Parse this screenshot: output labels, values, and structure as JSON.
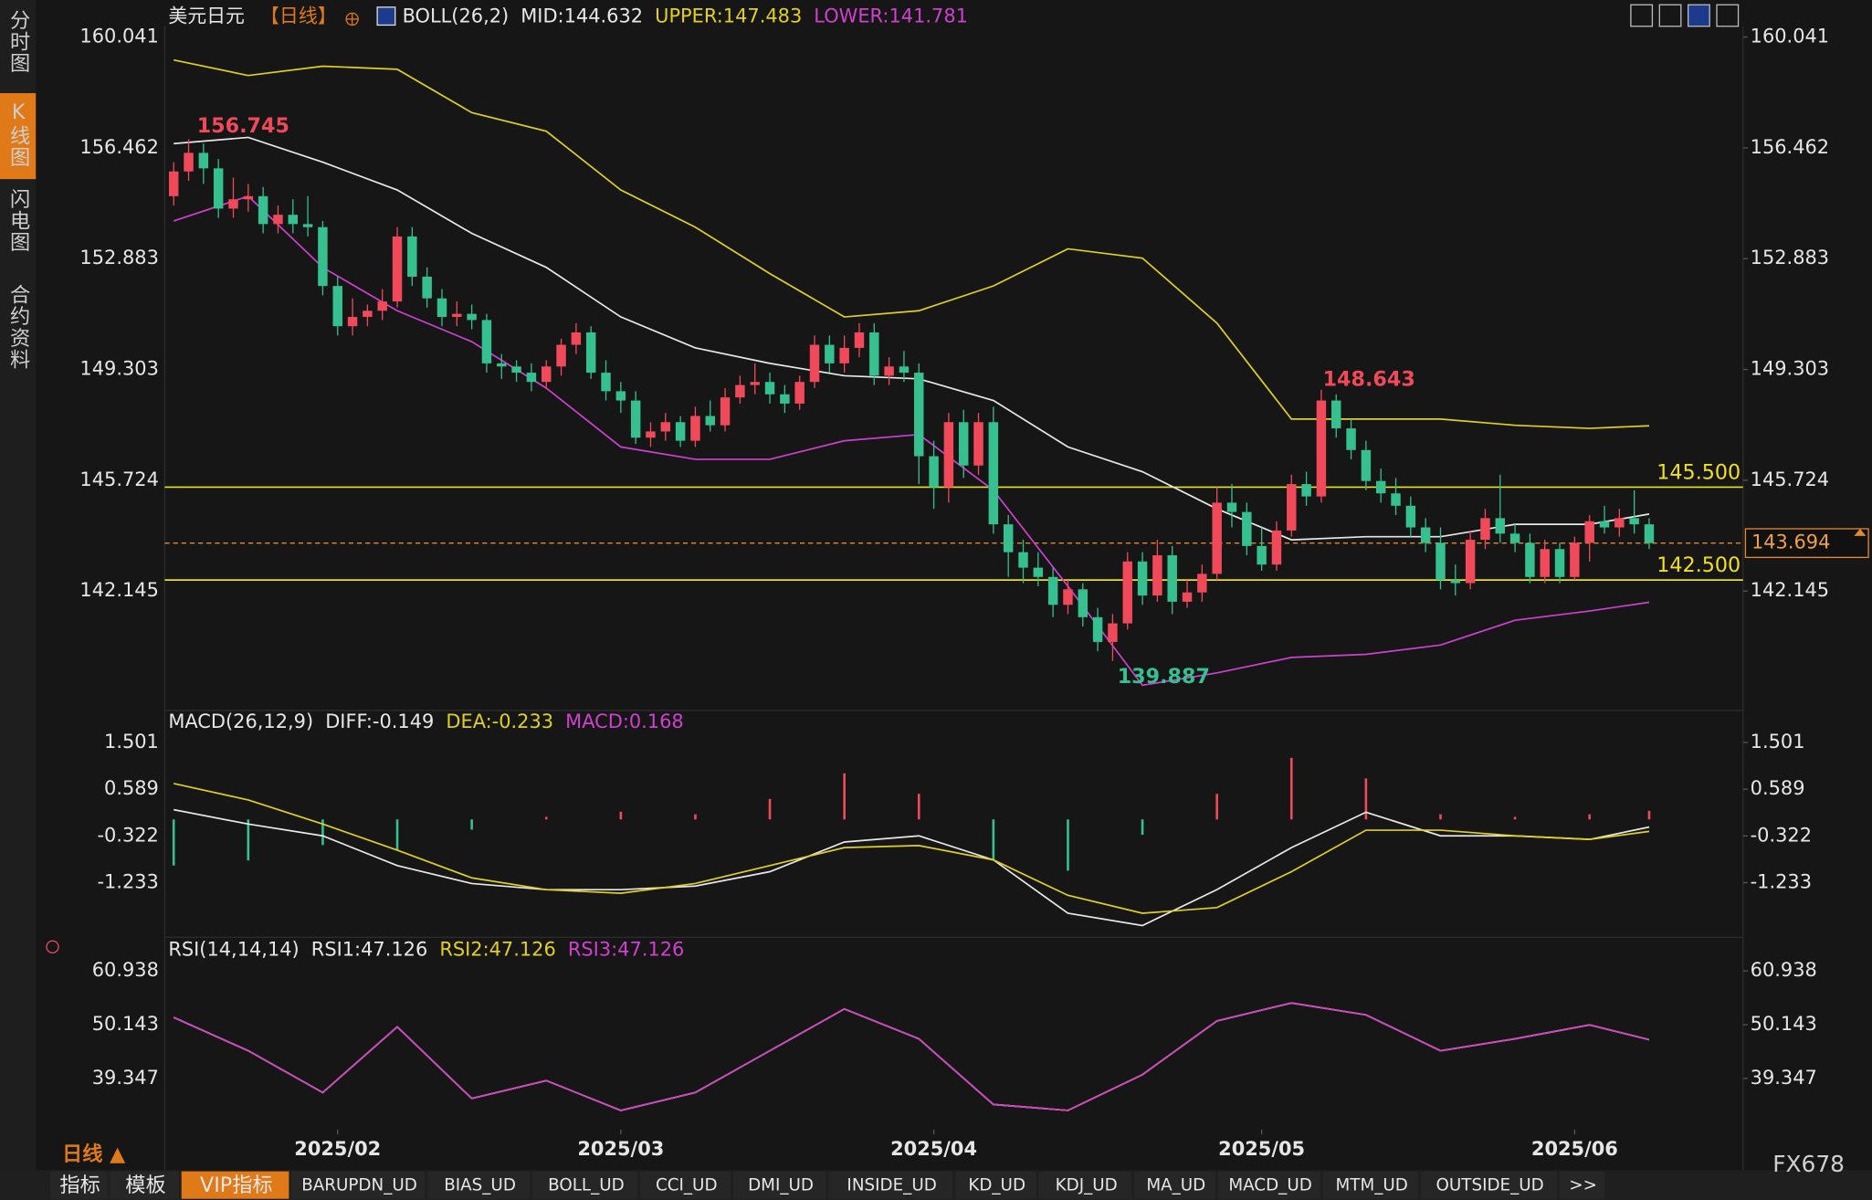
{
  "ui": {
    "sidebar": [
      "分时图",
      "K线图",
      "闪电图",
      "合约资料"
    ],
    "period": "日线 ▲",
    "brand": "FX678",
    "tabs": [
      "指标",
      "模板",
      "VIP指标",
      "BARUPDN_UD",
      "BIAS_UD",
      "BOLL_UD",
      "CCI_UD",
      "DMI_UD",
      "INSIDE_UD",
      "KD_UD",
      "KDJ_UD",
      "MA_UD",
      "MACD_UD",
      "MTM_UD",
      "OUTSIDE_UD",
      ">>"
    ]
  },
  "chart_data": [
    {
      "type": "candlestick",
      "title": "美元日元",
      "subtitle": "【日线】",
      "indicator": "BOLL(26,2)",
      "up_color": "#f04a5a",
      "down_color": "#36bf8f",
      "xlim": [
        -0.6,
        105.3
      ],
      "ylim": [
        138.48,
        160.39
      ],
      "yticks": [
        160.041,
        156.462,
        152.883,
        149.303,
        145.724,
        142.145
      ],
      "xticks": [
        {
          "value": 11,
          "label": "2025/02"
        },
        {
          "value": 30,
          "label": "2025/03"
        },
        {
          "value": 51,
          "label": "2025/04"
        },
        {
          "value": 73,
          "label": "2025/05"
        },
        {
          "value": 94,
          "label": "2025/06"
        }
      ],
      "levels": [
        {
          "value": 145.5,
          "label": "145.500"
        },
        {
          "value": 142.5,
          "label": "142.500"
        }
      ],
      "last_price": 143.694,
      "annotations": [
        156.745,
        148.643,
        139.887
      ],
      "candles": [
        [
          154.9,
          156.0,
          154.6,
          155.7
        ],
        [
          155.7,
          156.745,
          155.4,
          156.3
        ],
        [
          156.3,
          156.6,
          155.3,
          155.8
        ],
        [
          155.8,
          156.1,
          154.2,
          154.5
        ],
        [
          154.5,
          155.5,
          154.2,
          154.8
        ],
        [
          154.8,
          155.3,
          154.4,
          154.9
        ],
        [
          154.9,
          155.2,
          153.7,
          154.0
        ],
        [
          154.0,
          154.6,
          153.7,
          154.3
        ],
        [
          154.3,
          154.8,
          153.7,
          154.0
        ],
        [
          154.0,
          154.9,
          153.6,
          153.9
        ],
        [
          153.9,
          154.1,
          151.7,
          152.0
        ],
        [
          152.0,
          152.3,
          150.4,
          150.7
        ],
        [
          150.7,
          151.6,
          150.4,
          151.0
        ],
        [
          151.0,
          151.4,
          150.7,
          151.2
        ],
        [
          151.2,
          151.9,
          150.9,
          151.5
        ],
        [
          151.5,
          153.9,
          151.3,
          153.6
        ],
        [
          153.6,
          153.9,
          152.0,
          152.3
        ],
        [
          152.3,
          152.6,
          151.3,
          151.6
        ],
        [
          151.6,
          151.9,
          150.7,
          151.0
        ],
        [
          151.0,
          151.5,
          150.7,
          151.1
        ],
        [
          151.1,
          151.4,
          150.6,
          150.9
        ],
        [
          150.9,
          151.1,
          149.2,
          149.5
        ],
        [
          149.5,
          149.8,
          149.0,
          149.4
        ],
        [
          149.4,
          149.6,
          148.9,
          149.2
        ],
        [
          149.2,
          149.5,
          148.6,
          148.9
        ],
        [
          148.9,
          149.6,
          148.7,
          149.4
        ],
        [
          149.4,
          150.3,
          149.1,
          150.1
        ],
        [
          150.1,
          150.8,
          149.8,
          150.5
        ],
        [
          150.5,
          150.7,
          149.0,
          149.2
        ],
        [
          149.2,
          149.6,
          148.3,
          148.6
        ],
        [
          148.6,
          148.9,
          147.9,
          148.3
        ],
        [
          148.3,
          148.6,
          146.9,
          147.1
        ],
        [
          147.1,
          147.6,
          146.8,
          147.3
        ],
        [
          147.3,
          147.9,
          147.0,
          147.6
        ],
        [
          147.6,
          147.8,
          146.8,
          147.0
        ],
        [
          147.0,
          148.1,
          146.8,
          147.8
        ],
        [
          147.8,
          148.3,
          147.3,
          147.5
        ],
        [
          147.5,
          148.7,
          147.3,
          148.4
        ],
        [
          148.4,
          149.1,
          148.2,
          148.8
        ],
        [
          148.8,
          149.5,
          148.5,
          148.9
        ],
        [
          148.9,
          149.2,
          148.2,
          148.5
        ],
        [
          148.5,
          148.8,
          147.9,
          148.2
        ],
        [
          148.2,
          149.1,
          148.0,
          148.9
        ],
        [
          148.9,
          150.4,
          148.7,
          150.1
        ],
        [
          150.1,
          150.4,
          149.2,
          149.5
        ],
        [
          149.5,
          150.4,
          149.2,
          150.0
        ],
        [
          150.0,
          150.8,
          149.7,
          150.5
        ],
        [
          150.5,
          150.8,
          148.8,
          149.1
        ],
        [
          149.1,
          149.7,
          148.8,
          149.4
        ],
        [
          149.4,
          149.9,
          148.9,
          149.2
        ],
        [
          149.2,
          149.5,
          145.6,
          146.5
        ],
        [
          146.5,
          147.0,
          144.8,
          145.5
        ],
        [
          145.5,
          147.9,
          145.0,
          147.6
        ],
        [
          147.6,
          148.0,
          145.8,
          146.2
        ],
        [
          146.2,
          147.9,
          145.9,
          147.6
        ],
        [
          147.6,
          148.1,
          144.0,
          144.3
        ],
        [
          144.3,
          144.6,
          142.6,
          143.4
        ],
        [
          143.4,
          143.8,
          142.4,
          142.9
        ],
        [
          142.9,
          143.4,
          142.3,
          142.6
        ],
        [
          142.6,
          142.9,
          141.3,
          141.7
        ],
        [
          141.7,
          142.5,
          141.4,
          142.2
        ],
        [
          142.2,
          142.4,
          141.0,
          141.3
        ],
        [
          141.3,
          141.6,
          140.2,
          140.5
        ],
        [
          140.5,
          141.4,
          139.887,
          141.1
        ],
        [
          141.1,
          143.4,
          140.9,
          143.1
        ],
        [
          143.1,
          143.4,
          141.7,
          142.0
        ],
        [
          142.0,
          143.8,
          141.8,
          143.3
        ],
        [
          143.3,
          143.6,
          141.4,
          141.8
        ],
        [
          141.8,
          142.5,
          141.6,
          142.1
        ],
        [
          142.1,
          143.0,
          141.8,
          142.7
        ],
        [
          142.7,
          145.5,
          142.5,
          145.0
        ],
        [
          145.0,
          145.6,
          144.2,
          144.7
        ],
        [
          144.7,
          145.0,
          143.3,
          143.6
        ],
        [
          143.6,
          144.2,
          142.8,
          143.0
        ],
        [
          143.0,
          144.4,
          142.8,
          144.1
        ],
        [
          144.1,
          145.9,
          143.9,
          145.6
        ],
        [
          145.6,
          146.0,
          144.9,
          145.2
        ],
        [
          145.2,
          148.643,
          145.0,
          148.3
        ],
        [
          148.3,
          148.5,
          147.1,
          147.4
        ],
        [
          147.4,
          147.7,
          146.4,
          146.7
        ],
        [
          146.7,
          147.0,
          145.4,
          145.7
        ],
        [
          145.7,
          146.1,
          145.0,
          145.3
        ],
        [
          145.3,
          145.8,
          144.6,
          144.9
        ],
        [
          144.9,
          145.2,
          143.9,
          144.2
        ],
        [
          144.2,
          144.5,
          143.4,
          143.7
        ],
        [
          143.7,
          144.2,
          142.2,
          142.5
        ],
        [
          142.5,
          143.0,
          142.0,
          142.4
        ],
        [
          142.4,
          144.1,
          142.2,
          143.8
        ],
        [
          143.8,
          144.8,
          143.5,
          144.5
        ],
        [
          144.5,
          145.9,
          143.7,
          144.0
        ],
        [
          144.0,
          144.3,
          143.4,
          143.7
        ],
        [
          143.7,
          144.0,
          142.4,
          142.6
        ],
        [
          142.6,
          143.8,
          142.4,
          143.5
        ],
        [
          143.5,
          143.7,
          142.4,
          142.6
        ],
        [
          142.6,
          143.9,
          142.5,
          143.7
        ],
        [
          143.7,
          144.6,
          143.1,
          144.4
        ],
        [
          144.4,
          144.9,
          144.0,
          144.2
        ],
        [
          144.2,
          144.8,
          143.9,
          144.5
        ],
        [
          144.5,
          145.4,
          144.0,
          144.3
        ],
        [
          144.3,
          144.5,
          143.5,
          143.694
        ]
      ],
      "x": [
        0,
        5,
        10,
        15,
        20,
        25,
        30,
        35,
        40,
        45,
        50,
        55,
        60,
        65,
        70,
        75,
        80,
        85,
        90,
        95,
        99
      ],
      "series": [
        {
          "name": "MID:144.632",
          "color": "#e8e8e8",
          "values": [
            156.6,
            156.8,
            156.0,
            155.1,
            153.7,
            152.6,
            151.0,
            150.0,
            149.5,
            149.1,
            149.0,
            148.3,
            146.8,
            146.0,
            144.8,
            143.8,
            143.9,
            143.9,
            144.3,
            144.3,
            144.632
          ]
        },
        {
          "name": "UPPER:147.483",
          "color": "#e0d020",
          "values": [
            159.3,
            158.8,
            159.1,
            159.0,
            157.6,
            157.0,
            155.1,
            153.9,
            152.4,
            151.0,
            151.2,
            152.0,
            153.2,
            152.9,
            150.8,
            147.7,
            147.7,
            147.7,
            147.5,
            147.4,
            147.483
          ]
        },
        {
          "name": "LOWER:141.781",
          "color": "#d040d0",
          "values": [
            154.1,
            154.9,
            152.6,
            151.2,
            150.2,
            148.7,
            146.8,
            146.4,
            146.4,
            147.0,
            147.2,
            145.4,
            142.3,
            139.1,
            139.5,
            140.0,
            140.1,
            140.4,
            141.2,
            141.5,
            141.781
          ]
        }
      ]
    },
    {
      "type": "macd",
      "indicator": "MACD(26,12,9)",
      "xlim": [
        -0.6,
        105.3
      ],
      "ylim": [
        -2.23,
        1.73
      ],
      "yticks": [
        1.501,
        0.589,
        -0.322,
        -1.233
      ],
      "x": [
        0,
        5,
        10,
        15,
        20,
        25,
        30,
        35,
        40,
        45,
        50,
        55,
        60,
        65,
        70,
        75,
        80,
        85,
        90,
        95,
        99
      ],
      "series": [
        {
          "name": "DIFF:-0.149",
          "color": "#e8e8e8",
          "values": [
            0.19,
            -0.09,
            -0.32,
            -0.9,
            -1.25,
            -1.37,
            -1.37,
            -1.3,
            -1.02,
            -0.44,
            -0.32,
            -0.79,
            -1.83,
            -2.07,
            -1.37,
            -0.55,
            0.14,
            -0.32,
            -0.32,
            -0.39,
            -0.149
          ]
        },
        {
          "name": "DEA:-0.233",
          "color": "#e0d020",
          "values": [
            0.7,
            0.38,
            -0.09,
            -0.6,
            -1.14,
            -1.37,
            -1.44,
            -1.25,
            -0.9,
            -0.55,
            -0.51,
            -0.79,
            -1.48,
            -1.83,
            -1.72,
            -1.02,
            -0.21,
            -0.21,
            -0.32,
            -0.39,
            -0.233
          ]
        },
        {
          "name": "MACD:0.168",
          "color": "#d040d0",
          "kind": "histogram",
          "values": [
            -0.9,
            -0.8,
            -0.5,
            -0.6,
            -0.2,
            0.05,
            0.15,
            0.1,
            0.4,
            0.9,
            0.5,
            -0.8,
            -1.0,
            -0.3,
            0.5,
            1.2,
            0.8,
            0.1,
            0.05,
            0.1,
            0.168
          ]
        }
      ]
    },
    {
      "type": "line",
      "indicator": "RSI(14,14,14)",
      "xlim": [
        -0.6,
        105.3
      ],
      "ylim": [
        29.3,
        62.9
      ],
      "yticks": [
        60.938,
        50.143,
        39.347
      ],
      "x": [
        0,
        5,
        10,
        15,
        20,
        25,
        30,
        35,
        40,
        45,
        50,
        55,
        60,
        65,
        70,
        75,
        80,
        85,
        90,
        95,
        99
      ],
      "series": [
        {
          "name": "RSI1:47.126",
          "color": "#e8e8e8",
          "values": [
            51.6,
            44.9,
            36.5,
            49.7,
            35.3,
            38.9,
            32.9,
            36.5,
            44.9,
            53.3,
            47.3,
            34.1,
            32.9,
            40.1,
            50.9,
            54.5,
            52.1,
            44.9,
            47.3,
            50.1,
            47.126
          ]
        },
        {
          "name": "RSI2:47.126",
          "color": "#e0d020",
          "values": [
            51.6,
            44.9,
            36.5,
            49.7,
            35.3,
            38.9,
            32.9,
            36.5,
            44.9,
            53.3,
            47.3,
            34.1,
            32.9,
            40.1,
            50.9,
            54.5,
            52.1,
            44.9,
            47.3,
            50.1,
            47.126
          ]
        },
        {
          "name": "RSI3:47.126",
          "color": "#d040d0",
          "values": [
            51.6,
            44.9,
            36.5,
            49.7,
            35.3,
            38.9,
            32.9,
            36.5,
            44.9,
            53.3,
            47.3,
            34.1,
            32.9,
            40.1,
            50.9,
            54.5,
            52.1,
            44.9,
            47.3,
            50.1,
            47.126
          ]
        }
      ]
    }
  ]
}
